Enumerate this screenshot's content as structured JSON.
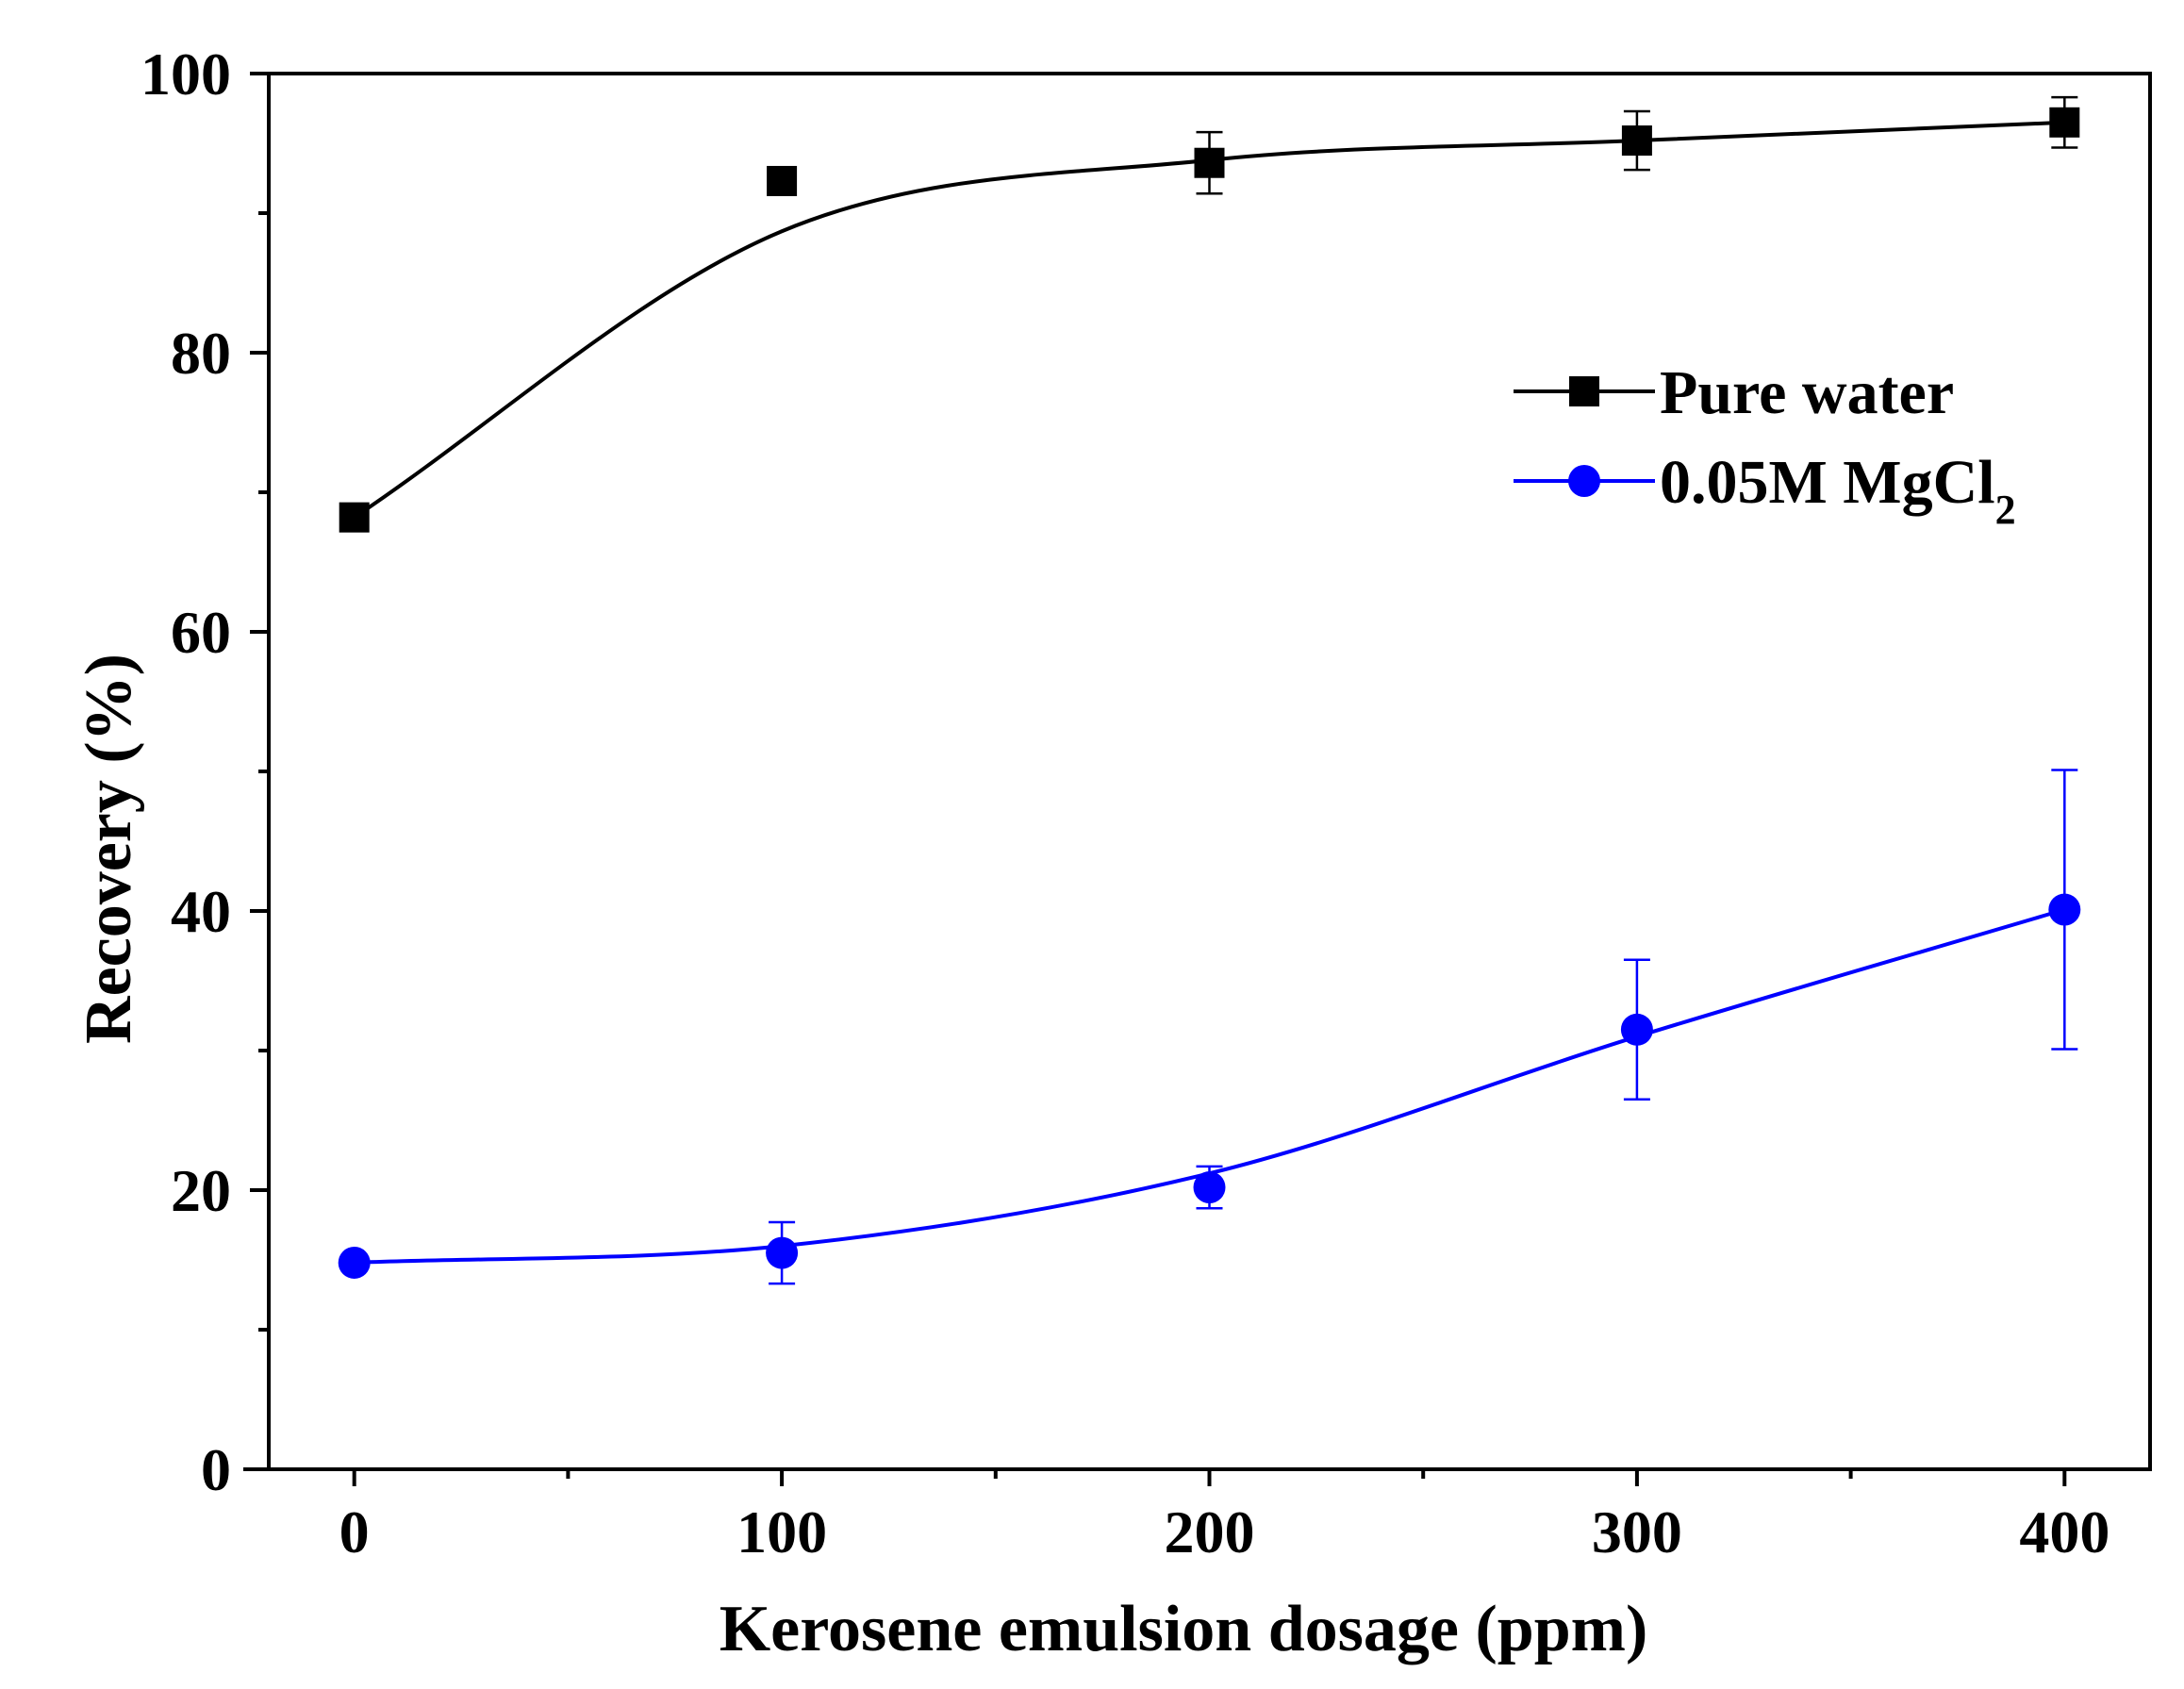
{
  "chart_data": {
    "type": "line",
    "title": "",
    "xlabel": "Kerosene emulsion dosage (ppm)",
    "ylabel": "Recovery (%)",
    "xlim": [
      -20,
      420
    ],
    "ylim": [
      0,
      100
    ],
    "xticks": [
      0,
      100,
      200,
      300,
      400
    ],
    "xtick_labels": [
      "0",
      "100",
      "200",
      "300",
      "400"
    ],
    "xminor": [
      50,
      150,
      250,
      350
    ],
    "yticks": [
      0,
      20,
      40,
      60,
      80,
      100
    ],
    "ytick_labels": [
      "0",
      "20",
      "40",
      "60",
      "80",
      "100"
    ],
    "yminor": [
      10,
      30,
      50,
      70,
      90
    ],
    "grid": false,
    "legend_position": "upper-right",
    "series": [
      {
        "name": "Pure water",
        "legend_text": "Pure water",
        "color": "#000000",
        "marker": "square",
        "x": [
          0,
          100,
          200,
          300,
          400
        ],
        "y": [
          68.2,
          92.3,
          93.6,
          95.2,
          96.5
        ],
        "error": [
          0,
          0,
          2.2,
          2.1,
          1.8
        ],
        "fit_y": [
          68.2,
          88.7,
          93.8,
          95.2,
          96.5
        ]
      },
      {
        "name": "0.05M MgCl2",
        "legend_text": "0.05M MgCl",
        "legend_subscript": "2",
        "color": "#0000ff",
        "marker": "circle",
        "x": [
          0,
          100,
          200,
          300,
          400
        ],
        "y": [
          14.8,
          15.5,
          20.2,
          31.5,
          40.1
        ],
        "error": [
          0,
          2.2,
          1.5,
          5.0,
          10.0
        ],
        "fit_y": [
          14.8,
          16.0,
          21.2,
          31.0,
          40.1
        ]
      }
    ]
  }
}
